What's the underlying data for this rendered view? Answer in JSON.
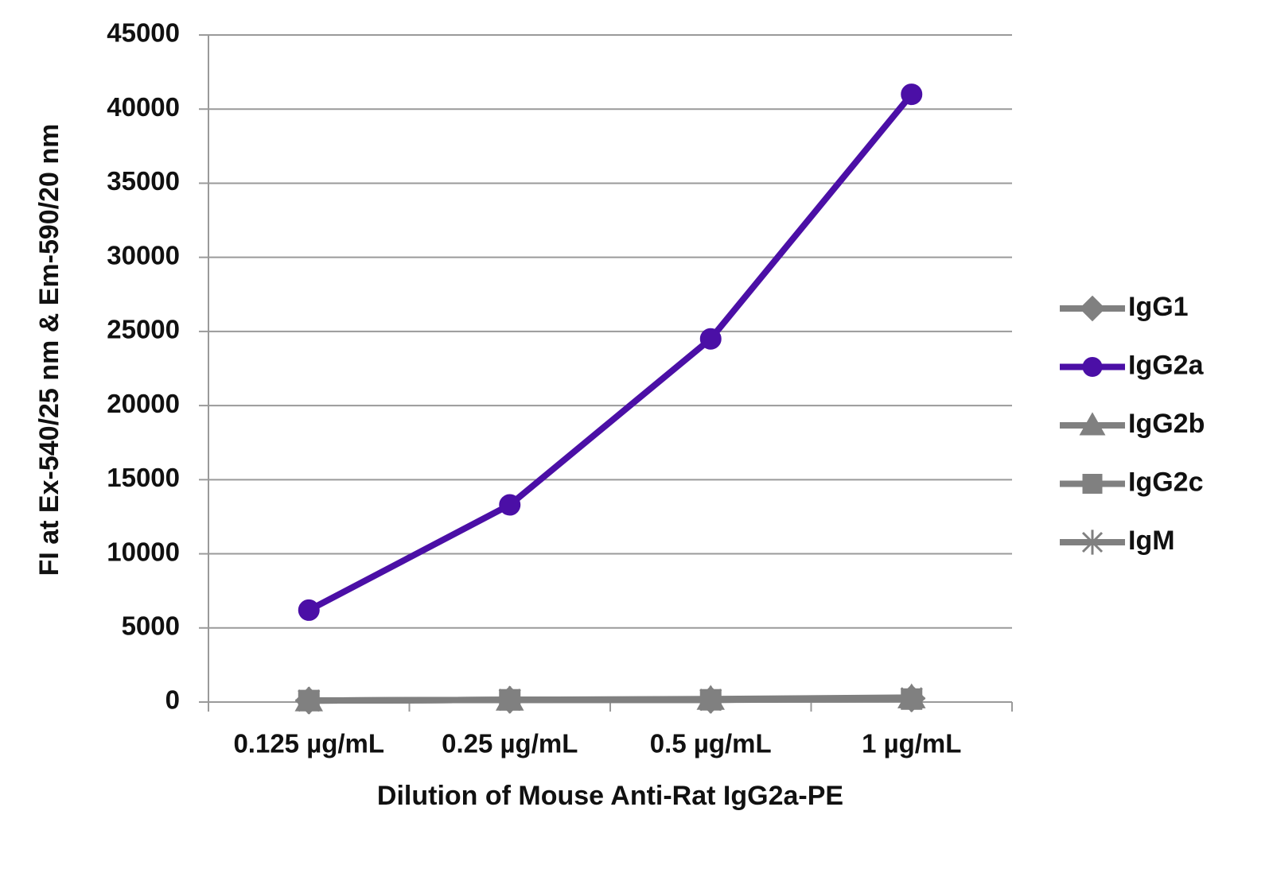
{
  "chart_data": {
    "type": "line",
    "x_label": "Dilution of Mouse Anti-Rat IgG2a-PE",
    "y_label": "FI at Ex-540/25 nm & Em-590/20 nm",
    "categories": [
      "0.125 µg/mL",
      "0.25 µg/mL",
      "0.5 µg/mL",
      "1 µg/mL"
    ],
    "series": [
      {
        "name": "IgG1",
        "color": "#808080",
        "marker": "diamond",
        "values": [
          100,
          150,
          150,
          250
        ]
      },
      {
        "name": "IgG2a",
        "color": "#4b0fa6",
        "marker": "circle",
        "values": [
          6200,
          13300,
          24500,
          41000
        ]
      },
      {
        "name": "IgG2b",
        "color": "#808080",
        "marker": "triangle",
        "values": [
          100,
          150,
          200,
          300
        ]
      },
      {
        "name": "IgG2c",
        "color": "#808080",
        "marker": "square",
        "values": [
          100,
          150,
          150,
          200
        ]
      },
      {
        "name": "IgM",
        "color": "#808080",
        "marker": "star",
        "values": [
          100,
          150,
          150,
          250
        ]
      }
    ],
    "ylim": [
      0,
      45000
    ],
    "yticks": [
      0,
      5000,
      10000,
      15000,
      20000,
      25000,
      30000,
      35000,
      40000,
      45000
    ],
    "grid": true,
    "legend": "right"
  }
}
